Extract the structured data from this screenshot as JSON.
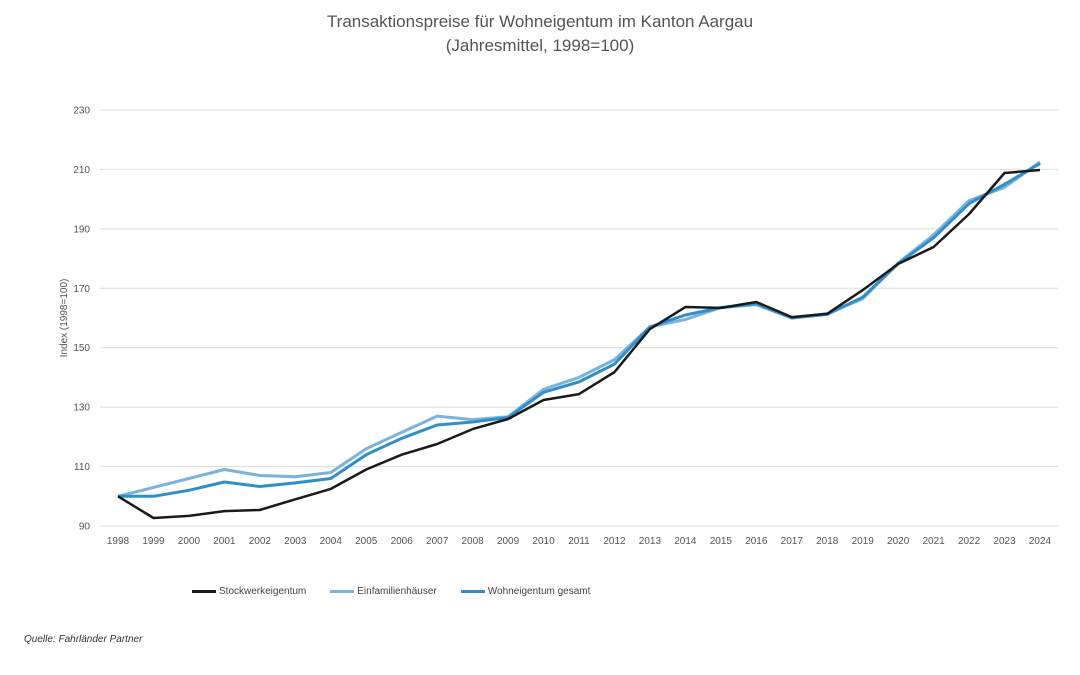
{
  "chart_data": {
    "type": "line",
    "title": "Transaktionspreise für Wohneigentum im Kanton Aargau",
    "subtitle": "(Jahresmittel, 1998=100)",
    "xlabel": "",
    "ylabel": "Index (1998=100)",
    "ylim": [
      90,
      230
    ],
    "yticks": [
      90,
      110,
      130,
      150,
      170,
      190,
      210,
      230
    ],
    "grid": true,
    "legend": "bottom",
    "categories": [
      "1998",
      "1999",
      "2000",
      "2001",
      "2002",
      "2003",
      "2004",
      "2005",
      "2006",
      "2007",
      "2008",
      "2009",
      "2010",
      "2011",
      "2012",
      "2013",
      "2014",
      "2015",
      "2016",
      "2017",
      "2018",
      "2019",
      "2020",
      "2021",
      "2022",
      "2023",
      "2024"
    ],
    "series": [
      {
        "name": "Stockwerkeigentum",
        "color": "#1a1a1a",
        "values": [
          100,
          92.7,
          93.4,
          95,
          95.4,
          99,
          102.5,
          109,
          114,
          117.6,
          122.6,
          126,
          132.4,
          134.4,
          141.8,
          156.3,
          163.7,
          163.4,
          165.4,
          160.3,
          161.4,
          169.4,
          178.2,
          183.9,
          195,
          208.8,
          209.8
        ]
      },
      {
        "name": "Einfamilienhäuser",
        "color": "#7ab3de",
        "values": [
          100,
          103,
          106,
          109,
          107,
          106.6,
          108,
          116,
          121.5,
          127,
          125.8,
          126.8,
          136,
          140,
          146,
          157,
          159.5,
          163.5,
          164.5,
          160,
          161.4,
          166.5,
          178.5,
          188,
          199.5,
          204,
          212.5
        ]
      },
      {
        "name": "Wohneigentum gesamt",
        "color": "#2f8fcb",
        "values": [
          100,
          100,
          102,
          104.8,
          103.3,
          104.5,
          106,
          114,
          119.5,
          124,
          125,
          126.5,
          135,
          138.5,
          144.5,
          157,
          161,
          163.5,
          164.8,
          160,
          161.2,
          167,
          178.3,
          187,
          198.5,
          205,
          212
        ]
      }
    ]
  },
  "source": "Quelle: Fahrländer Partner"
}
